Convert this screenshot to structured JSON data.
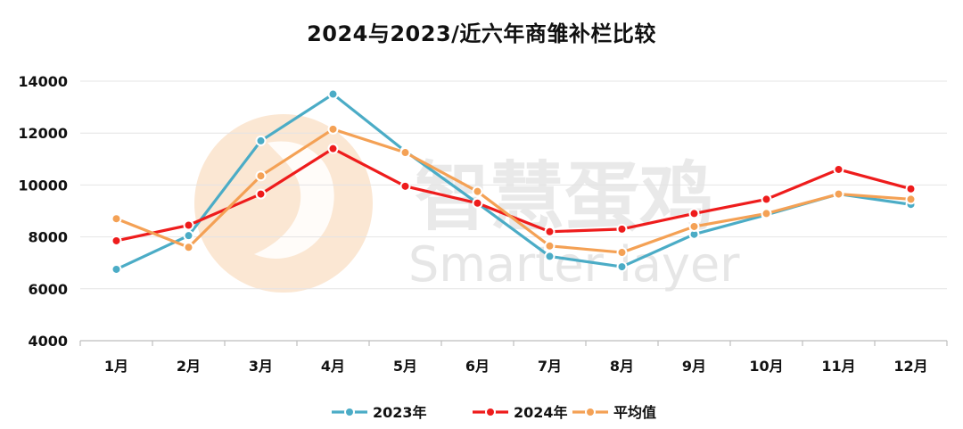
{
  "chart_data": {
    "type": "line",
    "title": "2024与2023/近六年商雏补栏比较",
    "categories": [
      "1月",
      "2月",
      "3月",
      "4月",
      "5月",
      "6月",
      "7月",
      "8月",
      "9月",
      "10月",
      "11月",
      "12月"
    ],
    "ylim": [
      4000,
      14000
    ],
    "yticks": [
      4000,
      6000,
      8000,
      10000,
      12000,
      14000
    ],
    "grid": true,
    "legend_position": "bottom",
    "series": [
      {
        "name": "2023年",
        "color": "#4bacc6",
        "values": [
          6750,
          8050,
          11700,
          13500,
          11300,
          9300,
          7250,
          6850,
          8100,
          8850,
          9650,
          9250
        ]
      },
      {
        "name": "2024年",
        "color": "#ee1c1c",
        "values": [
          7850,
          8450,
          9650,
          11400,
          9950,
          9300,
          8200,
          8300,
          8900,
          9450,
          10600,
          9850
        ]
      },
      {
        "name": "平均值",
        "color": "#f4a155",
        "values": [
          8700,
          7600,
          10350,
          12150,
          11250,
          9750,
          7650,
          7400,
          8400,
          8900,
          9650,
          9450
        ]
      }
    ]
  },
  "watermark": {
    "cn": "智慧蛋鸡",
    "en": "Smarter layer"
  }
}
